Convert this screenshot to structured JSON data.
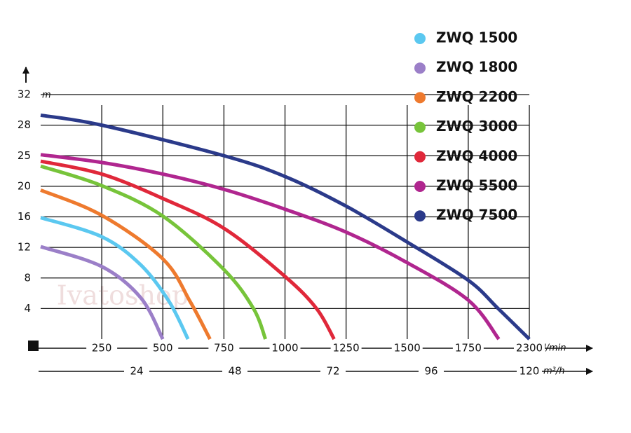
{
  "chart_data": {
    "type": "line",
    "watermark": "Ivatoshop",
    "x_unit": "l/min",
    "x2_unit": "m³/h",
    "y_unit": "m",
    "xlim": [
      0,
      2300
    ],
    "xticks": [
      250,
      500,
      750,
      1000,
      1250,
      1500,
      1750,
      2300
    ],
    "x2lim": [
      0,
      120
    ],
    "x2ticks": [
      24,
      48,
      72,
      96,
      120
    ],
    "ylim": [
      0,
      32
    ],
    "yticks": [
      4,
      8,
      12,
      16,
      20,
      25,
      28,
      32
    ],
    "grid": true,
    "series": [
      {
        "name": "ZWQ 1500",
        "color": "#5bc8f0",
        "x": [
          0,
          250,
          410,
          526,
          603
        ],
        "values": [
          15.9,
          13.4,
          9.7,
          4.9,
          0
        ]
      },
      {
        "name": "ZWQ 1800",
        "color": "#9b7fc8",
        "x": [
          0,
          250,
          410,
          500
        ],
        "values": [
          12.1,
          9.5,
          5.4,
          0
        ]
      },
      {
        "name": "ZWQ 2200",
        "color": "#ee7a2e",
        "x": [
          0,
          250,
          500,
          612,
          693
        ],
        "values": [
          19.5,
          16.2,
          10.5,
          4.9,
          0
        ]
      },
      {
        "name": "ZWQ 3000",
        "color": "#77c43a",
        "x": [
          0,
          250,
          500,
          750,
          871,
          920
        ],
        "values": [
          23.3,
          20.1,
          16.1,
          9.1,
          4,
          0
        ]
      },
      {
        "name": "ZWQ 4000",
        "color": "#e0283a",
        "x": [
          0,
          250,
          500,
          750,
          1000,
          1129,
          1201
        ],
        "values": [
          24.1,
          22.0,
          18.4,
          14.5,
          8.2,
          4,
          0
        ]
      },
      {
        "name": "ZWQ 5500",
        "color": "#b0268f",
        "x": [
          0,
          250,
          500,
          750,
          1000,
          1250,
          1500,
          1750,
          2025
        ],
        "values": [
          25.1,
          23.9,
          22.0,
          19.6,
          17.0,
          14.0,
          10.0,
          5.1,
          0
        ]
      },
      {
        "name": "ZWQ 7500",
        "color": "#2b3a8a",
        "x": [
          0,
          250,
          750,
          1000,
          1250,
          1500,
          1750,
          2019,
          2300
        ],
        "values": [
          29.3,
          28,
          25,
          21.6,
          17.4,
          12.7,
          7.7,
          4,
          0
        ]
      }
    ]
  }
}
